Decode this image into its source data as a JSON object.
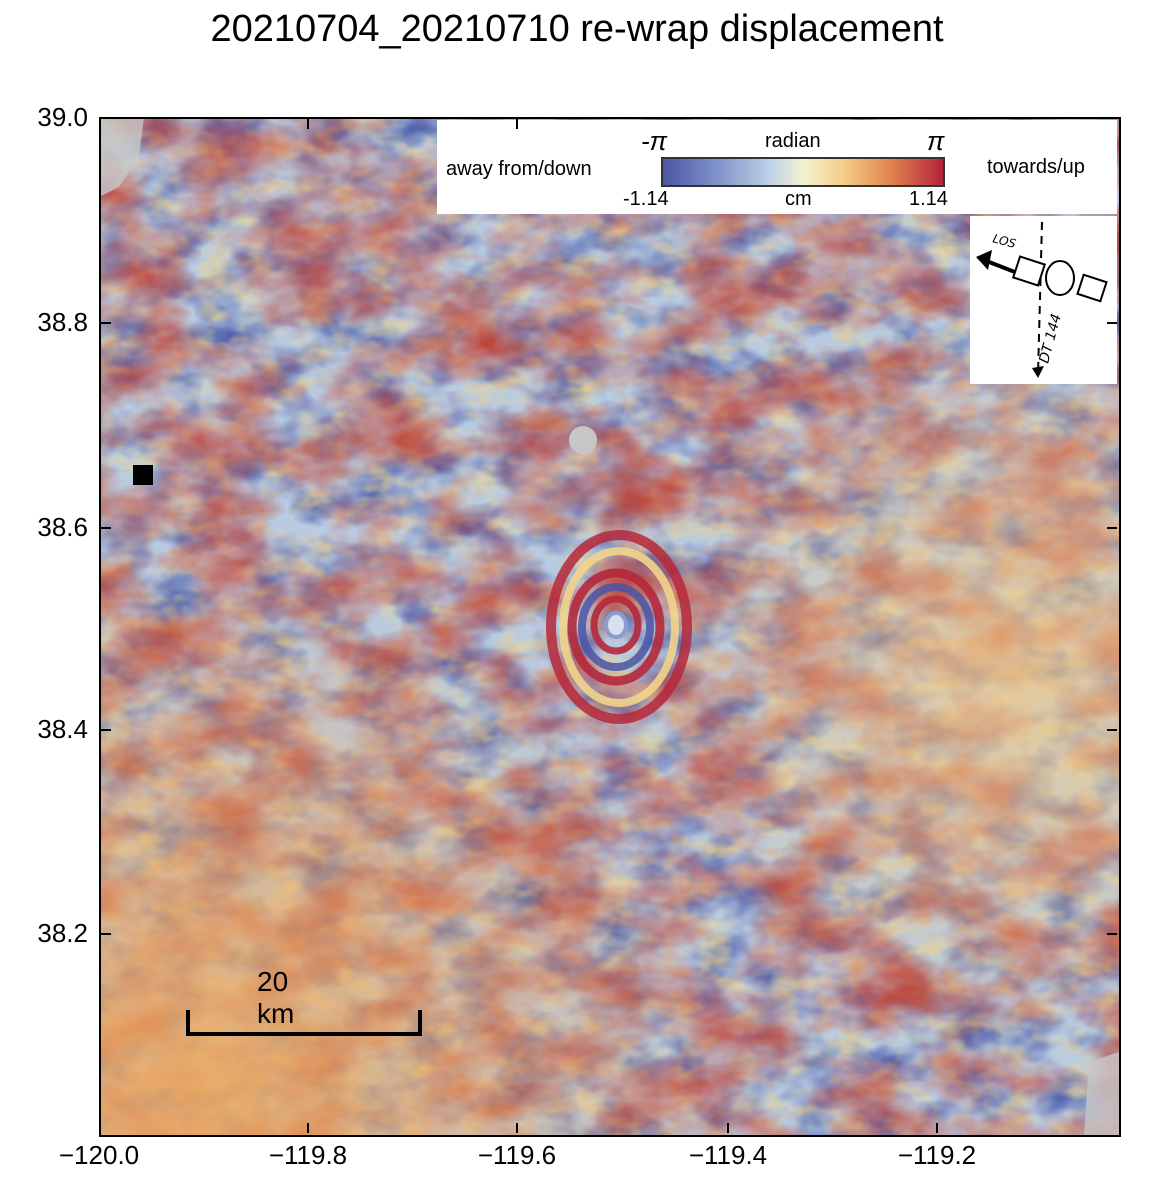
{
  "title": "20210704_20210710 re-wrap displacement",
  "map": {
    "y_ticks": [
      "39.0",
      "38.8",
      "38.6",
      "38.4",
      "38.2"
    ],
    "x_ticks": [
      "−120.0",
      "−119.8",
      "−119.6",
      "−119.4",
      "−119.2"
    ],
    "x_range": [
      -120.0,
      -119.03
    ],
    "y_range": [
      38.02,
      39.0
    ],
    "colormap": [
      "#4a55a6",
      "#bcd0e6",
      "#f4f2d2",
      "#e48a52",
      "#b3243a"
    ]
  },
  "legend": {
    "left_label": "away from/down",
    "right_label": "towards/up",
    "top_min": "-π",
    "top_unit": "radian",
    "top_max": "π",
    "bottom_min": "-1.14",
    "bottom_unit": "cm",
    "bottom_max": "1.14"
  },
  "inset": {
    "los_label": "LOS",
    "track_label": "DT 144"
  },
  "scale_bar": {
    "label": "20 km"
  }
}
